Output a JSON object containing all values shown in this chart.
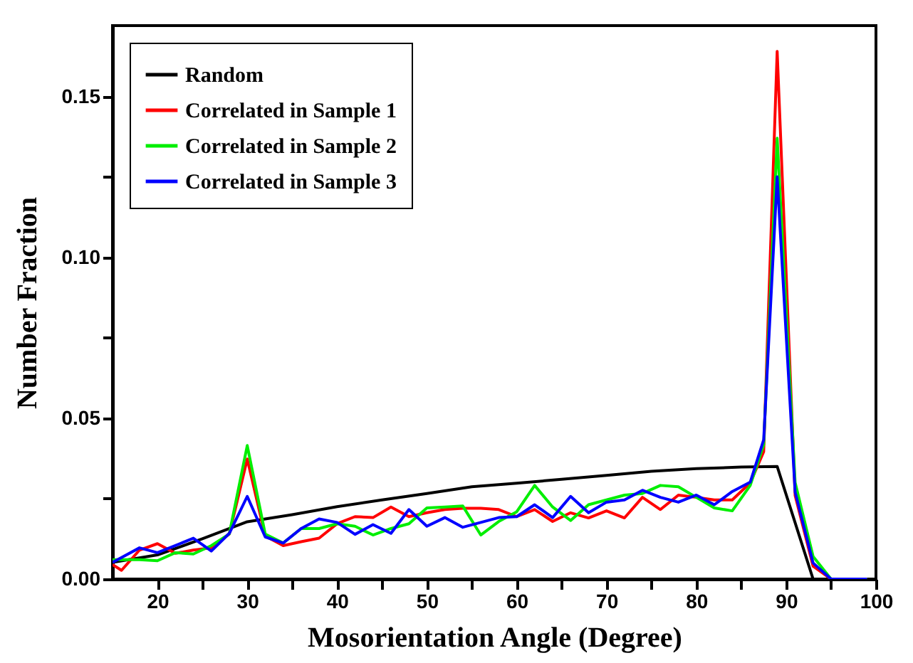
{
  "chart_data": {
    "type": "line",
    "xlabel": "Mosorientation Angle (Degree)",
    "ylabel": "Number Fraction",
    "x": [
      15,
      16,
      18,
      20,
      22,
      24,
      26,
      28,
      30,
      32,
      34,
      36,
      38,
      40,
      42,
      44,
      46,
      48,
      50,
      52,
      54,
      56,
      58,
      60,
      62,
      64,
      66,
      68,
      70,
      72,
      74,
      76,
      78,
      80,
      82,
      84,
      86,
      87.5,
      89,
      91,
      93,
      95,
      97,
      99
    ],
    "series": [
      {
        "name": "Random",
        "color": "#000000",
        "x": [
          15,
          20,
          25,
          30,
          35,
          40,
          45,
          50,
          55,
          60,
          65,
          70,
          75,
          80,
          85,
          89,
          93,
          95
        ],
        "values": [
          0.0052,
          0.0075,
          0.0125,
          0.0178,
          0.02,
          0.0225,
          0.0246,
          0.0266,
          0.0287,
          0.0298,
          0.031,
          0.0322,
          0.0335,
          0.0343,
          0.0348,
          0.035,
          0,
          0
        ]
      },
      {
        "name": "Correlated in Sample 1",
        "color": "#ff0000",
        "values": [
          0.0045,
          0.0027,
          0.009,
          0.011,
          0.008,
          0.009,
          0.0097,
          0.014,
          0.0373,
          0.0134,
          0.0104,
          0.0116,
          0.0127,
          0.0172,
          0.0194,
          0.0191,
          0.0224,
          0.0194,
          0.0206,
          0.0216,
          0.022,
          0.022,
          0.0216,
          0.0194,
          0.0216,
          0.0179,
          0.0206,
          0.019,
          0.0212,
          0.019,
          0.0254,
          0.0216,
          0.0261,
          0.0254,
          0.0246,
          0.0246,
          0.0299,
          0.0396,
          0.164,
          0.026,
          0.004,
          0,
          0,
          0
        ]
      },
      {
        "name": "Correlated in Sample 2",
        "color": "#00ee00",
        "values": [
          0.006,
          0.006,
          0.006,
          0.0057,
          0.0082,
          0.0078,
          0.0104,
          0.014,
          0.0415,
          0.014,
          0.0112,
          0.0157,
          0.0157,
          0.0172,
          0.0164,
          0.0137,
          0.0157,
          0.0172,
          0.0221,
          0.0224,
          0.0227,
          0.0137,
          0.0179,
          0.0209,
          0.0291,
          0.0224,
          0.0182,
          0.0231,
          0.0246,
          0.0261,
          0.0266,
          0.0291,
          0.0287,
          0.0254,
          0.0221,
          0.0212,
          0.0291,
          0.0418,
          0.137,
          0.03,
          0.007,
          0,
          0,
          0
        ]
      },
      {
        "name": "Correlated in Sample 3",
        "color": "#0000ff",
        "values": [
          0.0052,
          0.0067,
          0.0097,
          0.0082,
          0.0104,
          0.0127,
          0.0087,
          0.0142,
          0.0257,
          0.0131,
          0.0112,
          0.0157,
          0.0187,
          0.0176,
          0.0139,
          0.0169,
          0.0142,
          0.0216,
          0.0164,
          0.0191,
          0.0161,
          0.0176,
          0.0191,
          0.0194,
          0.0231,
          0.0191,
          0.0257,
          0.0206,
          0.0239,
          0.0246,
          0.0276,
          0.0254,
          0.0239,
          0.0261,
          0.0231,
          0.0272,
          0.0301,
          0.0433,
          0.125,
          0.027,
          0.005,
          0,
          0,
          0
        ]
      }
    ],
    "xlim": [
      15,
      100
    ],
    "xticks": [
      20,
      {
        "value": 25,
        "label": null
      },
      30,
      {
        "value": 35,
        "label": null
      },
      40,
      {
        "value": 45,
        "label": null
      },
      50,
      {
        "value": 55,
        "label": null
      },
      60,
      {
        "value": 65,
        "label": null
      },
      70,
      {
        "value": 75,
        "label": null
      },
      80,
      {
        "value": 85,
        "label": null
      },
      90,
      {
        "value": 95,
        "label": null
      },
      100
    ],
    "ylim": [
      0,
      0.172
    ],
    "yticks": [
      {
        "value": 0,
        "label": "0.00"
      },
      {
        "value": 0.025,
        "label": null
      },
      {
        "value": 0.05,
        "label": "0.05"
      },
      {
        "value": 0.075,
        "label": null
      },
      {
        "value": 0.1,
        "label": "0.10"
      },
      {
        "value": 0.125,
        "label": null
      },
      {
        "value": 0.15,
        "label": "0.15"
      }
    ],
    "grid": false,
    "legend": "top left",
    "marker": "none",
    "line_style": "solid"
  }
}
